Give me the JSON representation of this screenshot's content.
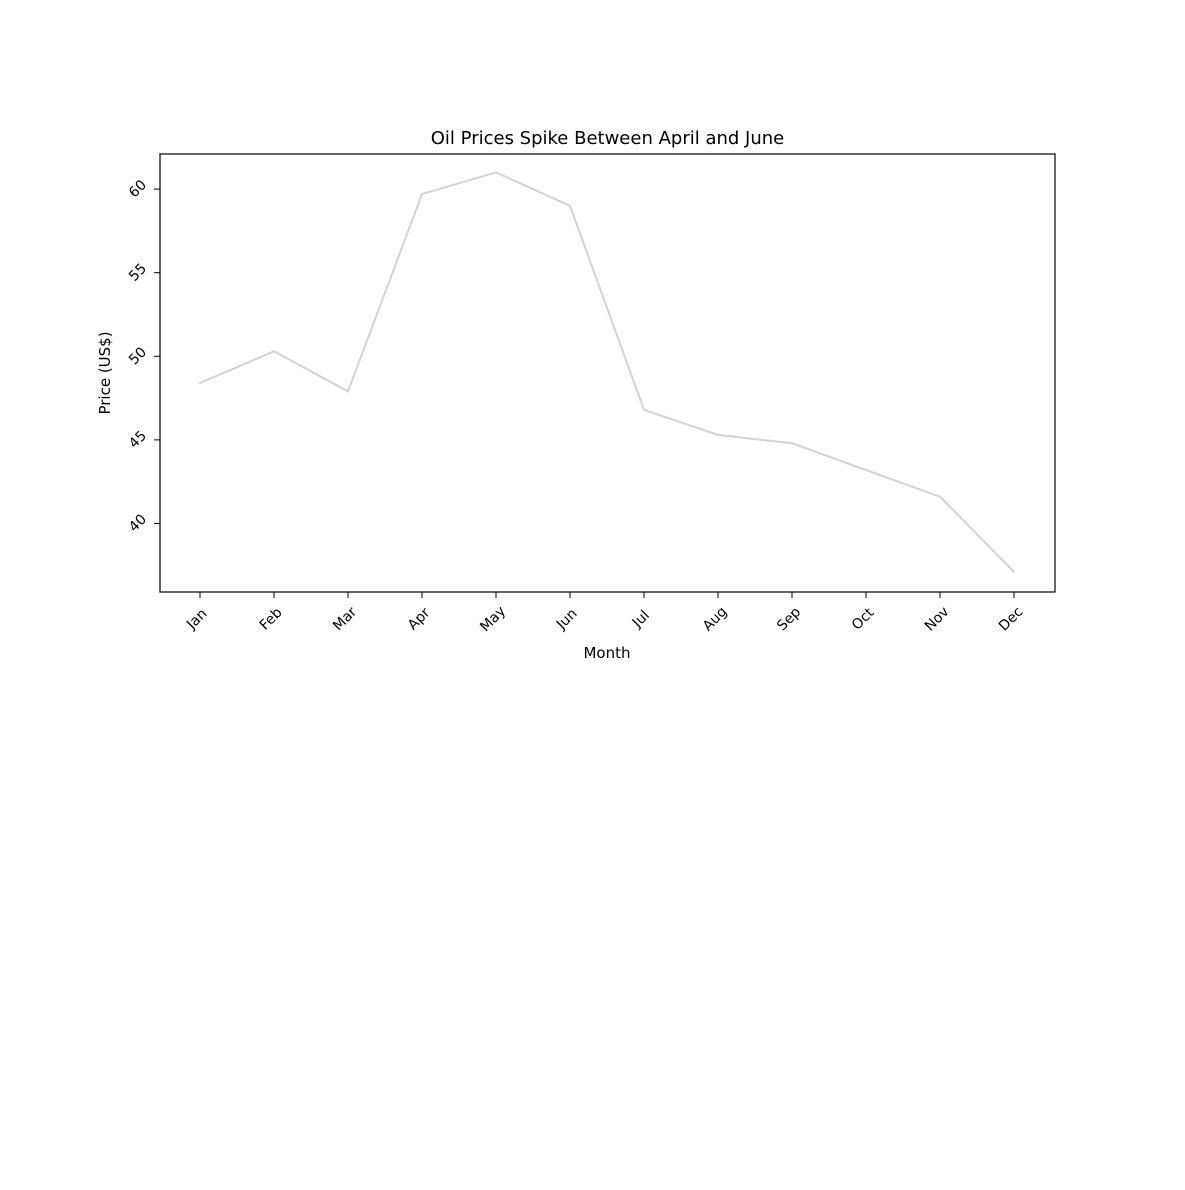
{
  "chart_data": {
    "type": "line",
    "title": "Oil Prices Spike Between April and June",
    "xlabel": "Month",
    "ylabel": "Price (US$)",
    "categories": [
      "Jan",
      "Feb",
      "Mar",
      "Apr",
      "May",
      "Jun",
      "Jul",
      "Aug",
      "Sep",
      "Oct",
      "Nov",
      "Dec"
    ],
    "series": [
      {
        "values": [
          48.4,
          50.3,
          47.9,
          59.7,
          61.0,
          59.0,
          46.8,
          45.3,
          44.8,
          43.2,
          41.6,
          37.1
        ],
        "color": "#d3d3d3"
      }
    ],
    "yticks": [
      40,
      45,
      50,
      55,
      60
    ],
    "ylim": [
      35.9,
      62.1
    ],
    "grid": false,
    "legend": false
  }
}
